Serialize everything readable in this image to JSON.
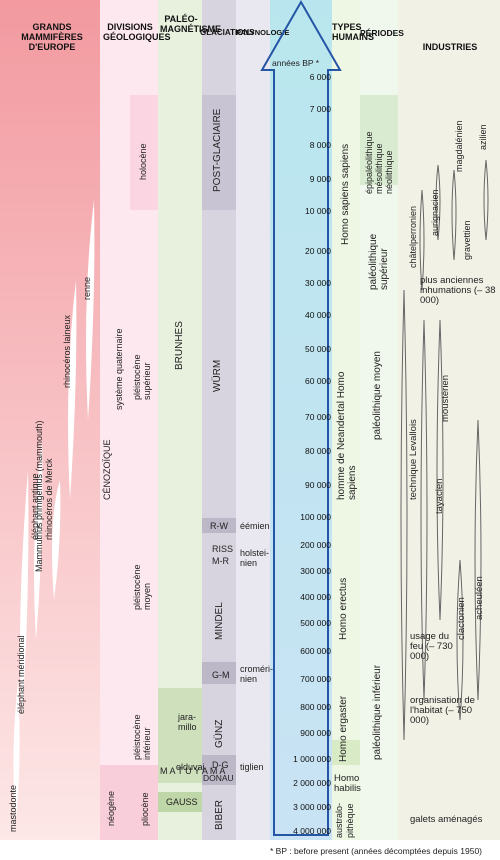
{
  "headers": {
    "mammiferes": "GRANDS MAMMIFÈRES D'EUROPE",
    "divisions": "DIVISIONS GÉOLOGIQUES",
    "paleo": "PALÉO-MAGNÉTISME",
    "glaciations": "GLACIATIONS",
    "palynologie": "PALYNOLOGIE",
    "annees": "années BP *",
    "types": "TYPES HUMAINS",
    "periodes": "PÉRIODES",
    "industries": "INDUSTRIES"
  },
  "ticks": [
    "6 000",
    "7 000",
    "8 000",
    "9 000",
    "10 000",
    "20 000",
    "30 000",
    "40 000",
    "50 000",
    "60 000",
    "70 000",
    "80 000",
    "90 000",
    "100 000",
    "200 000",
    "300 000",
    "400 000",
    "500 000",
    "600 000",
    "700 000",
    "800 000",
    "900 000",
    "1 000 000",
    "2 000 000",
    "3 000 000",
    "4 000 000"
  ],
  "mammals": [
    "mastodonte",
    "éléphant méridional",
    "éléphant antique",
    "Mammuthus primigenius (mammouth)",
    "rhinocéros de Merck",
    "rhinocéros laineux",
    "renne"
  ],
  "divisions": {
    "cenozoique": "CÉNOZOÏQUE",
    "quaternaire": "système quaternaire",
    "holocene": "holocène",
    "pleisto_sup": "pléistocène supérieur",
    "pleisto_moy": "pléistocène moyen",
    "pleisto_inf": "pléistocène inférieur",
    "neogene": "néogène",
    "pliocene": "pliocène"
  },
  "paleo": {
    "brunhes": "BRUNHES",
    "matuyama": "M A T U Y A M A",
    "jaramillo": "jara-millo",
    "olduvai": "olduvai",
    "gauss": "GAUSS"
  },
  "glaciations": {
    "post": "POST-GLACIAIRE",
    "wurm": "WÜRM",
    "rw": "R-W",
    "riss": "RISS",
    "mr": "M-R",
    "mindel": "MINDEL",
    "gm": "G-M",
    "gunz": "GÜNZ",
    "dg": "D-G",
    "donau": "DONAU",
    "biber": "BIBER"
  },
  "palyno": {
    "eemien": "éémien",
    "holstein": "holstei-nien",
    "cromer": "croméri-nien",
    "tiglien": "tiglien"
  },
  "types": {
    "sapiens_sapiens": "Homo sapiens sapiens",
    "neandertal": "homme de Neandertal Homo sapiens",
    "erectus": "Homo erectus",
    "ergaster": "Homo ergaster",
    "habilis": "Homo habilis",
    "australo": "australo-pithèque"
  },
  "periodes": {
    "epi": "épipaléolithique mésolithique néolithique",
    "sup": "paléolithique supérieur",
    "moy": "paléolithique moyen",
    "inf": "paléolithique inférieur"
  },
  "industries": {
    "azilien": "azilien",
    "magdalenien": "magdalénien",
    "aurignacien": "aurignacien",
    "gravettien": "gravettien",
    "chatelperronien": "châtelperronien",
    "inhumations": "plus anciennes inhumations (– 38 000)",
    "levallois": "technique Levallois",
    "mousterien": "moustérien",
    "tayacien": "tayacien",
    "clactonien": "clactonien",
    "acheuleen": "acheuléen",
    "feu": "usage du feu (– 730 000)",
    "habitat": "organisation de l'habitat (– 750 000)",
    "galets": "galets aménagés"
  },
  "footnote": "* BP : before present (années décomptées depuis 1950)"
}
